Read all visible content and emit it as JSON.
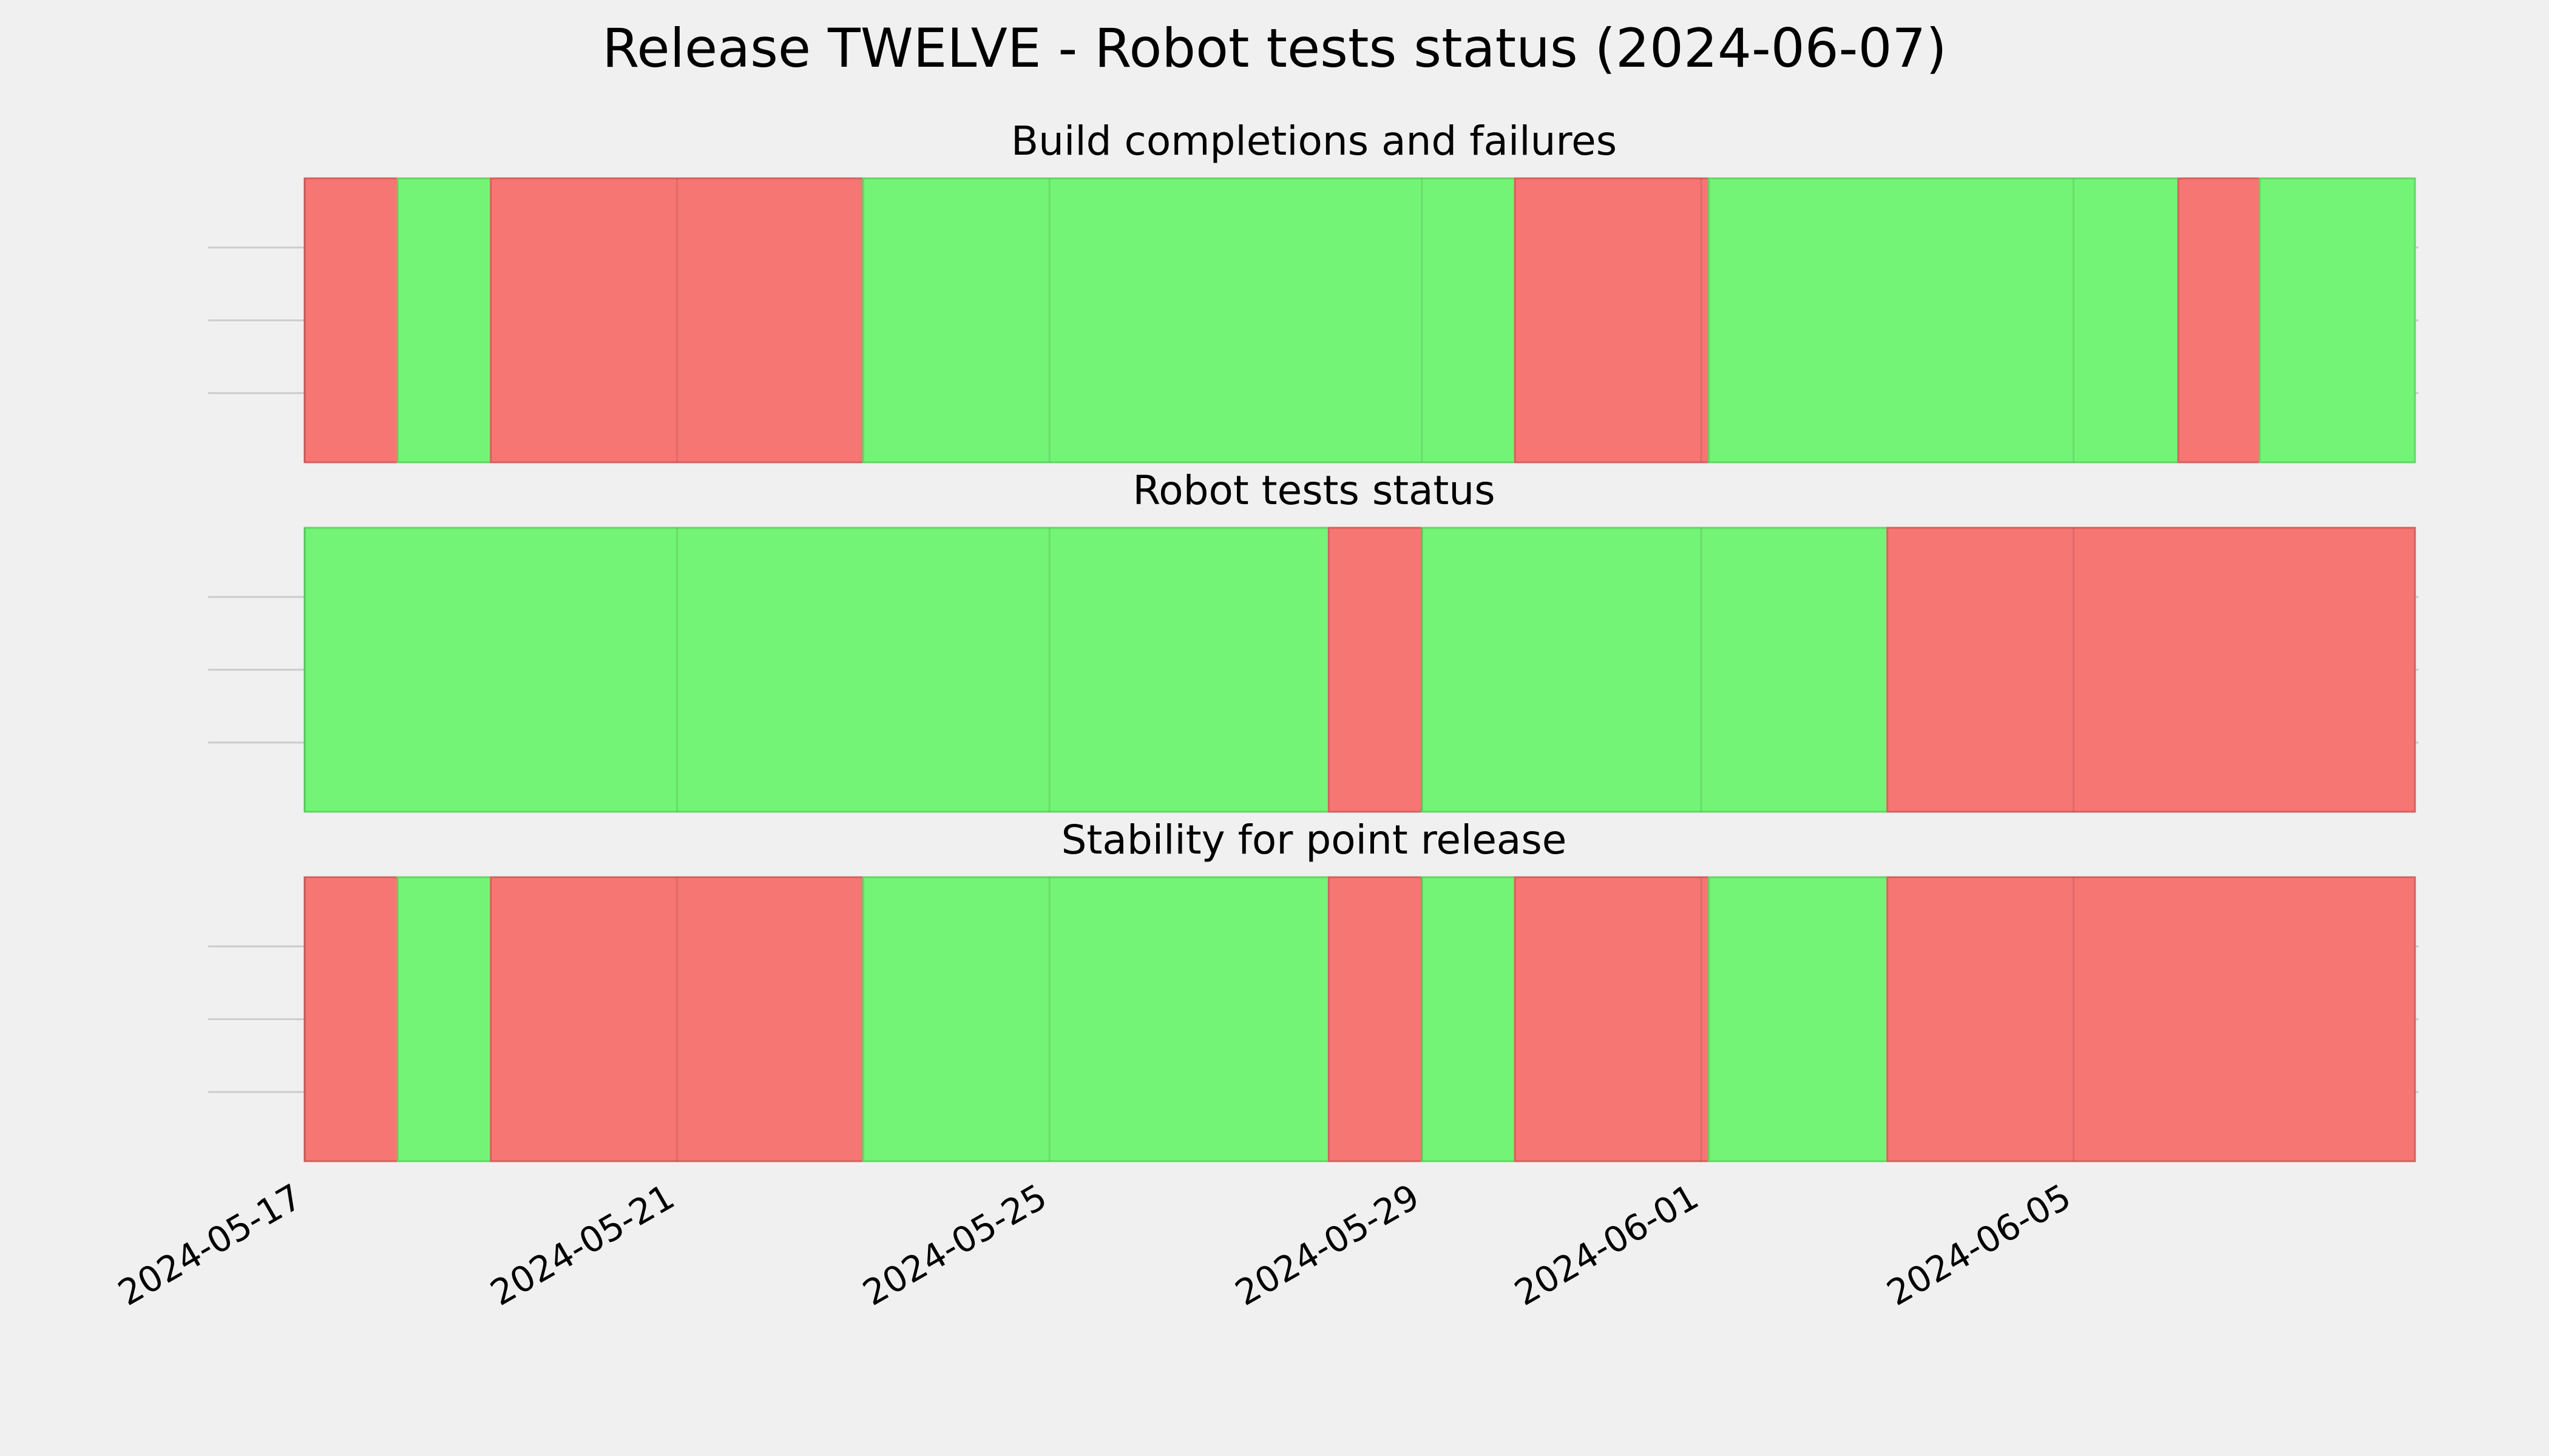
{
  "chart_data": {
    "type": "timeline",
    "title": "Release TWELVE - Robot tests status (2024-06-07)",
    "x_axis": {
      "ticks": [
        "2024-05-17",
        "2024-05-21",
        "2024-05-25",
        "2024-05-29",
        "2024-06-01",
        "2024-06-05"
      ],
      "range": [
        "2024-05-17",
        "2024-06-08T16:00"
      ]
    },
    "grid": true,
    "colors": {
      "pass": "#74f476",
      "fail": "#f67674",
      "background": "#f0f0f0",
      "grid": "#cbcbcb"
    },
    "panels": [
      {
        "title": "Build completions and failures",
        "segments": [
          {
            "start": "2024-05-17T00:00",
            "end": "2024-05-18T00:00",
            "status": "fail"
          },
          {
            "start": "2024-05-18T00:00",
            "end": "2024-05-19T00:00",
            "status": "pass"
          },
          {
            "start": "2024-05-19T00:00",
            "end": "2024-05-23T00:00",
            "status": "fail"
          },
          {
            "start": "2024-05-23T00:00",
            "end": "2024-05-30T00:00",
            "status": "pass"
          },
          {
            "start": "2024-05-30T00:00",
            "end": "2024-06-01T02:00",
            "status": "fail"
          },
          {
            "start": "2024-06-01T02:00",
            "end": "2024-06-06T03:00",
            "status": "pass"
          },
          {
            "start": "2024-06-06T03:00",
            "end": "2024-06-07T00:00",
            "status": "fail"
          },
          {
            "start": "2024-06-07T00:00",
            "end": "2024-06-08T16:00",
            "status": "pass"
          }
        ]
      },
      {
        "title": "Robot tests status",
        "segments": [
          {
            "start": "2024-05-17T00:00",
            "end": "2024-05-28T00:00",
            "status": "pass"
          },
          {
            "start": "2024-05-28T00:00",
            "end": "2024-05-29T00:00",
            "status": "fail"
          },
          {
            "start": "2024-05-29T00:00",
            "end": "2024-06-03T00:00",
            "status": "pass"
          },
          {
            "start": "2024-06-03T00:00",
            "end": "2024-06-08T16:00",
            "status": "fail"
          }
        ]
      },
      {
        "title": "Stability for point release",
        "segments": [
          {
            "start": "2024-05-17T00:00",
            "end": "2024-05-18T00:00",
            "status": "fail"
          },
          {
            "start": "2024-05-18T00:00",
            "end": "2024-05-19T00:00",
            "status": "pass"
          },
          {
            "start": "2024-05-19T00:00",
            "end": "2024-05-23T00:00",
            "status": "fail"
          },
          {
            "start": "2024-05-23T00:00",
            "end": "2024-05-28T00:00",
            "status": "pass"
          },
          {
            "start": "2024-05-28T00:00",
            "end": "2024-05-29T00:00",
            "status": "fail"
          },
          {
            "start": "2024-05-29T00:00",
            "end": "2024-05-30T00:00",
            "status": "pass"
          },
          {
            "start": "2024-05-30T00:00",
            "end": "2024-06-01T02:00",
            "status": "fail"
          },
          {
            "start": "2024-06-01T02:00",
            "end": "2024-06-03T00:00",
            "status": "pass"
          },
          {
            "start": "2024-06-03T00:00",
            "end": "2024-06-08T16:00",
            "status": "fail"
          }
        ]
      }
    ]
  }
}
